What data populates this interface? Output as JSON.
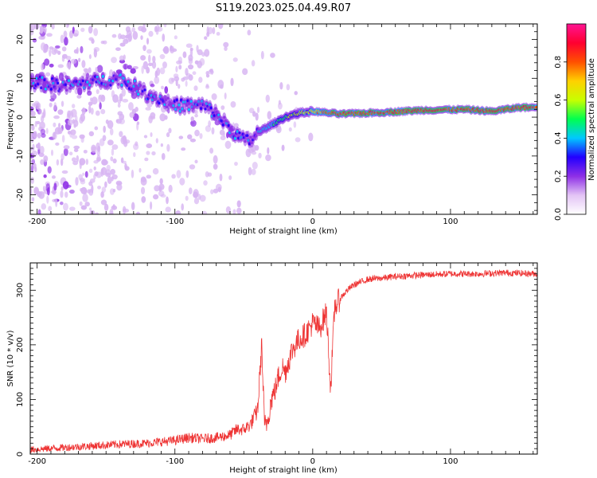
{
  "figure": {
    "title": "S119.2023.025.04.49.R07"
  },
  "chart_data": [
    {
      "type": "heatmap",
      "title": "",
      "xlabel": "Height of straight line (km)",
      "ylabel": "Frequency (Hz)",
      "xlim": [
        -205,
        163
      ],
      "ylim": [
        -25,
        24
      ],
      "xticks": [
        -200,
        -100,
        0,
        100
      ],
      "yticks": [
        -20,
        -10,
        0,
        10,
        20
      ],
      "xtick_labels": [
        "-200",
        "-100",
        "0",
        "100"
      ],
      "ytick_labels": [
        "-20",
        "-10",
        "0",
        "10",
        "20"
      ],
      "ridge": {
        "x": [
          -200,
          -180,
          -160,
          -140,
          -120,
          -100,
          -80,
          -70,
          -60,
          -50,
          -45,
          -40,
          -30,
          -20,
          -10,
          0,
          20,
          50,
          80,
          110,
          130,
          150,
          163
        ],
        "frequency": [
          9,
          8,
          9,
          10,
          6,
          3,
          3,
          1,
          -3,
          -6,
          -6,
          -4,
          -2,
          0,
          1,
          1.5,
          0.8,
          1.2,
          1.8,
          2,
          1.5,
          2.5,
          2.5
        ]
      },
      "colorbar": {
        "label": "Normalized spectral amplitude",
        "range": [
          0,
          1
        ],
        "ticks": [
          0.0,
          0.2,
          0.4,
          0.6,
          0.8
        ],
        "tick_labels": [
          "0.0",
          "0.2",
          "0.4",
          "0.6",
          "0.8"
        ],
        "colors": [
          "#ffffff",
          "#e3c4f5",
          "#8e2fe6",
          "#2200ff",
          "#00c8ff",
          "#00ff50",
          "#c8ff00",
          "#ffd000",
          "#ff5000",
          "#ff0030",
          "#ff1493"
        ]
      }
    },
    {
      "type": "line",
      "title": "",
      "xlabel": "Height of straight line (km)",
      "ylabel": "SNR (10 * v/v)",
      "xlim": [
        -205,
        163
      ],
      "ylim": [
        0,
        350
      ],
      "xticks": [
        -200,
        -100,
        0,
        100
      ],
      "yticks": [
        0,
        100,
        200,
        300
      ],
      "xtick_labels": [
        "-200",
        "-100",
        "0",
        "100"
      ],
      "ytick_labels": [
        "0",
        "100",
        "200",
        "300"
      ],
      "series": [
        {
          "name": "SNR",
          "color": "#ee3333",
          "x": [
            -205,
            -180,
            -160,
            -140,
            -120,
            -100,
            -90,
            -80,
            -70,
            -60,
            -55,
            -50,
            -45,
            -40,
            -37,
            -35,
            -33,
            -30,
            -27,
            -25,
            -22,
            -20,
            -15,
            -10,
            -5,
            0,
            5,
            10,
            13,
            16,
            20,
            25,
            30,
            35,
            40,
            50,
            60,
            80,
            100,
            120,
            140,
            163
          ],
          "values": [
            8,
            12,
            15,
            18,
            20,
            25,
            30,
            28,
            30,
            35,
            45,
            45,
            55,
            80,
            200,
            50,
            60,
            100,
            120,
            140,
            160,
            150,
            190,
            210,
            220,
            240,
            230,
            260,
            120,
            270,
            285,
            300,
            310,
            315,
            320,
            322,
            325,
            328,
            330,
            330,
            332,
            330
          ]
        }
      ]
    }
  ]
}
